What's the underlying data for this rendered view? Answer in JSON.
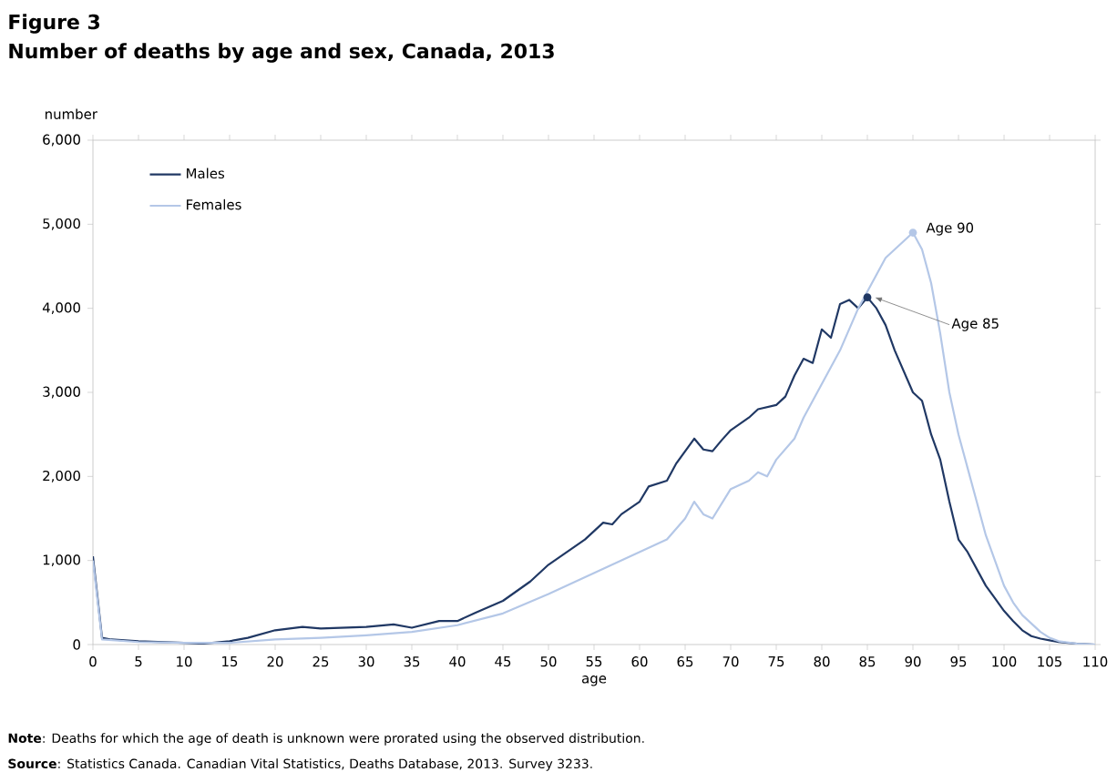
{
  "chart_data": {
    "type": "line",
    "title": "Figure 3",
    "subtitle": "Number of deaths by age and sex, Canada, 2013",
    "xlabel": "age",
    "ylabel": "number",
    "xlim": [
      0,
      110
    ],
    "xticks": [
      0,
      5,
      10,
      15,
      20,
      25,
      30,
      35,
      40,
      45,
      50,
      55,
      60,
      65,
      70,
      75,
      80,
      85,
      90,
      95,
      100,
      105,
      110
    ],
    "ylim": [
      0,
      6000
    ],
    "yticks": [
      0,
      {
        "value": 1000,
        "label": "1,000"
      },
      {
        "value": 2000,
        "label": "2,000"
      },
      {
        "value": 3000,
        "label": "3,000"
      },
      {
        "value": 4000,
        "label": "4,000"
      },
      {
        "value": 5000,
        "label": "5,000"
      },
      {
        "value": 6000,
        "label": "6,000"
      }
    ],
    "legend": "top left",
    "grid": false,
    "marker": "none",
    "line_style": "solid",
    "series": [
      {
        "name": "Males",
        "color": "#203864",
        "x": [
          0,
          1,
          2,
          5,
          10,
          12,
          15,
          17,
          20,
          23,
          25,
          30,
          33,
          35,
          38,
          40,
          42,
          45,
          48,
          50,
          52,
          54,
          55,
          56,
          57,
          58,
          60,
          61,
          63,
          64,
          66,
          67,
          68,
          69,
          70,
          72,
          73,
          75,
          76,
          77,
          78,
          79,
          80,
          81,
          82,
          83,
          84,
          85,
          86,
          87,
          88,
          89,
          90,
          91,
          92,
          93,
          94,
          95,
          96,
          97,
          98,
          99,
          100,
          101,
          102,
          103,
          104,
          105,
          106,
          108,
          110
        ],
        "values": [
          1050,
          80,
          60,
          40,
          20,
          10,
          40,
          80,
          170,
          210,
          190,
          210,
          240,
          200,
          280,
          280,
          380,
          520,
          750,
          950,
          1100,
          1250,
          1350,
          1450,
          1430,
          1550,
          1700,
          1880,
          1950,
          2150,
          2450,
          2320,
          2300,
          2430,
          2550,
          2700,
          2800,
          2850,
          2950,
          3200,
          3400,
          3350,
          3750,
          3650,
          4050,
          4100,
          4000,
          4130,
          4000,
          3800,
          3500,
          3250,
          3000,
          2900,
          2500,
          2200,
          1700,
          1250,
          1100,
          900,
          700,
          550,
          400,
          280,
          170,
          100,
          70,
          50,
          30,
          10,
          0
        ]
      },
      {
        "name": "Females",
        "color": "#b4c7e7",
        "x": [
          0,
          1,
          5,
          10,
          15,
          20,
          25,
          30,
          35,
          40,
          45,
          50,
          55,
          58,
          60,
          62,
          63,
          65,
          66,
          67,
          68,
          70,
          72,
          73,
          74,
          75,
          77,
          78,
          80,
          82,
          84,
          85,
          86,
          87,
          88,
          89,
          90,
          91,
          92,
          93,
          94,
          95,
          96,
          97,
          98,
          99,
          100,
          101,
          102,
          103,
          104,
          105,
          106,
          108,
          110
        ],
        "values": [
          1000,
          60,
          30,
          20,
          20,
          60,
          80,
          110,
          150,
          230,
          370,
          600,
          850,
          1000,
          1100,
          1200,
          1250,
          1500,
          1700,
          1550,
          1500,
          1850,
          1950,
          2050,
          2000,
          2200,
          2450,
          2700,
          3100,
          3500,
          4000,
          4200,
          4400,
          4600,
          4700,
          4800,
          4900,
          4700,
          4300,
          3700,
          3000,
          2500,
          2100,
          1700,
          1300,
          1000,
          700,
          500,
          350,
          250,
          150,
          80,
          40,
          10,
          0
        ]
      }
    ],
    "annotations": [
      {
        "text": "Age 90",
        "x": 90,
        "y": 4900
      },
      {
        "text": "Age 85",
        "x": 85,
        "y": 4130
      },
      "**Note**: Deaths for which the age of death is unknown were prorated using the observed distribution.",
      "**Source**: Statistics Canada. Canadian Vital Statistics, Deaths Database, 2013. Survey 3233."
    ]
  }
}
